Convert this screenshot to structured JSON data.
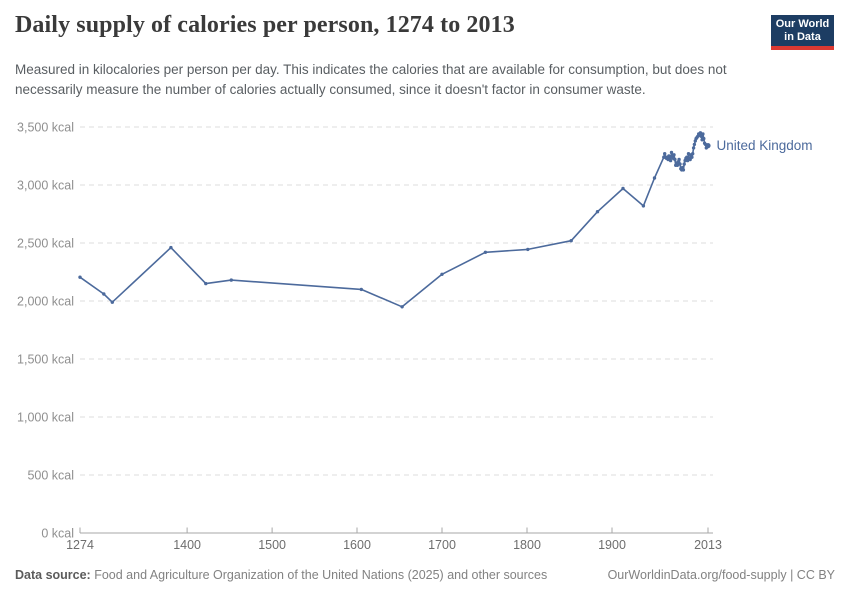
{
  "header": {
    "title": "Daily supply of calories per person, 1274 to 2013",
    "subtitle": "Measured in kilocalories per person per day. This indicates the calories that are available for consumption, but does not necessarily measure the number of calories actually consumed, since it doesn't factor in consumer waste."
  },
  "logo": {
    "line1": "Our World",
    "line2": "in Data",
    "bg_color": "#1d3d63",
    "stripe_color": "#dc3932"
  },
  "chart_data": {
    "type": "line",
    "title": "Daily supply of calories per person, 1274 to 2013",
    "unit": "kcal",
    "xlim": [
      1274,
      2013
    ],
    "ylim": [
      0,
      3500
    ],
    "grid": "horizontal-dashed",
    "legend_position": "line-end-label",
    "x_ticks": [
      1274,
      1400,
      1500,
      1600,
      1700,
      1800,
      1900,
      2013
    ],
    "x_tick_labels": [
      "1274",
      "1400",
      "1500",
      "1600",
      "1700",
      "1800",
      "1900",
      "2013"
    ],
    "y_ticks": [
      0,
      500,
      1000,
      1500,
      2000,
      2500,
      3000,
      3500
    ],
    "y_tick_labels": [
      "0 kcal",
      "500 kcal",
      "1,000 kcal",
      "1,500 kcal",
      "2,000 kcal",
      "2,500 kcal",
      "3,000 kcal",
      "3,500 kcal"
    ],
    "series": [
      {
        "name": "United Kingdom",
        "color": "#4C6A9C",
        "points": [
          [
            1274,
            2205
          ],
          [
            1302,
            2060
          ],
          [
            1312,
            1990
          ],
          [
            1381,
            2460
          ],
          [
            1422,
            2150
          ],
          [
            1452,
            2180
          ],
          [
            1605,
            2100
          ],
          [
            1653,
            1950
          ],
          [
            1700,
            2230
          ],
          [
            1751,
            2420
          ],
          [
            1801,
            2445
          ],
          [
            1852,
            2520
          ],
          [
            1883,
            2770
          ],
          [
            1913,
            2970
          ],
          [
            1937,
            2820
          ],
          [
            1950,
            3060
          ],
          [
            1961,
            3240
          ],
          [
            1962,
            3270
          ],
          [
            1963,
            3240
          ],
          [
            1964,
            3230
          ],
          [
            1965,
            3240
          ],
          [
            1966,
            3220
          ],
          [
            1967,
            3250
          ],
          [
            1968,
            3230
          ],
          [
            1969,
            3210
          ],
          [
            1970,
            3280
          ],
          [
            1971,
            3250
          ],
          [
            1972,
            3230
          ],
          [
            1973,
            3260
          ],
          [
            1974,
            3220
          ],
          [
            1975,
            3170
          ],
          [
            1976,
            3190
          ],
          [
            1977,
            3170
          ],
          [
            1978,
            3200
          ],
          [
            1979,
            3220
          ],
          [
            1980,
            3180
          ],
          [
            1981,
            3140
          ],
          [
            1982,
            3130
          ],
          [
            1983,
            3150
          ],
          [
            1984,
            3130
          ],
          [
            1985,
            3180
          ],
          [
            1986,
            3210
          ],
          [
            1987,
            3230
          ],
          [
            1988,
            3240
          ],
          [
            1989,
            3210
          ],
          [
            1990,
            3270
          ],
          [
            1991,
            3230
          ],
          [
            1992,
            3220
          ],
          [
            1993,
            3260
          ],
          [
            1994,
            3240
          ],
          [
            1995,
            3270
          ],
          [
            1996,
            3320
          ],
          [
            1997,
            3350
          ],
          [
            1998,
            3380
          ],
          [
            1999,
            3400
          ],
          [
            2000,
            3410
          ],
          [
            2001,
            3420
          ],
          [
            2002,
            3440
          ],
          [
            2003,
            3430
          ],
          [
            2004,
            3450
          ],
          [
            2005,
            3420
          ],
          [
            2006,
            3390
          ],
          [
            2007,
            3440
          ],
          [
            2008,
            3400
          ],
          [
            2009,
            3360
          ],
          [
            2010,
            3350
          ],
          [
            2011,
            3320
          ],
          [
            2012,
            3330
          ],
          [
            2013,
            3340
          ]
        ]
      }
    ]
  },
  "footer": {
    "datasource_label": "Data source:",
    "datasource_text": " Food and Agriculture Organization of the United Nations (2025) and other sources",
    "credit": "OurWorldinData.org/food-supply | CC BY"
  }
}
